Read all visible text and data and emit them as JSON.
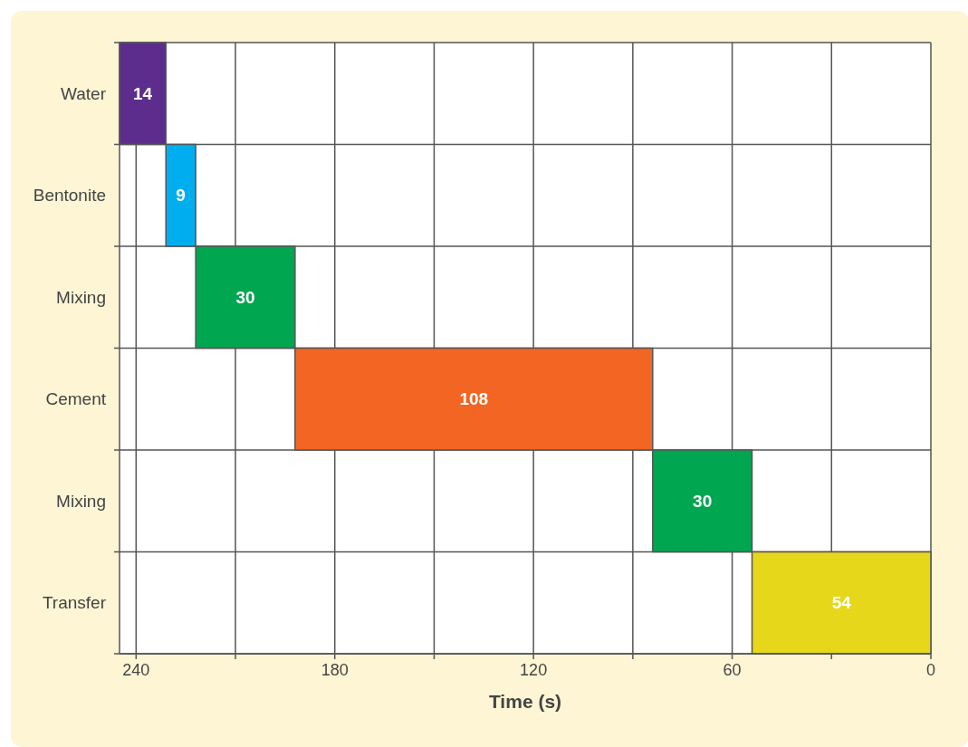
{
  "chart_data": {
    "type": "bar",
    "orientation": "horizontal",
    "xlabel": "Time (s)",
    "categories": [
      "Water",
      "Bentonite",
      "Mixing",
      "Cement",
      "Mixing",
      "Transfer"
    ],
    "values": [
      14,
      9,
      30,
      108,
      30,
      54
    ],
    "base": [
      231,
      222,
      192,
      84,
      54,
      0
    ],
    "colors": [
      "#5c2d8c",
      "#00aeef",
      "#00a650",
      "#f26522",
      "#00a650",
      "#e6d71b"
    ],
    "xlim": [
      245,
      0
    ],
    "xticks": [
      240,
      {
        "value": 210,
        "label": null
      },
      180,
      {
        "value": 150,
        "label": null
      },
      120,
      {
        "value": 90,
        "label": null
      },
      60,
      {
        "value": 30,
        "label": null
      },
      0
    ],
    "grid": true,
    "data_labels": true
  }
}
